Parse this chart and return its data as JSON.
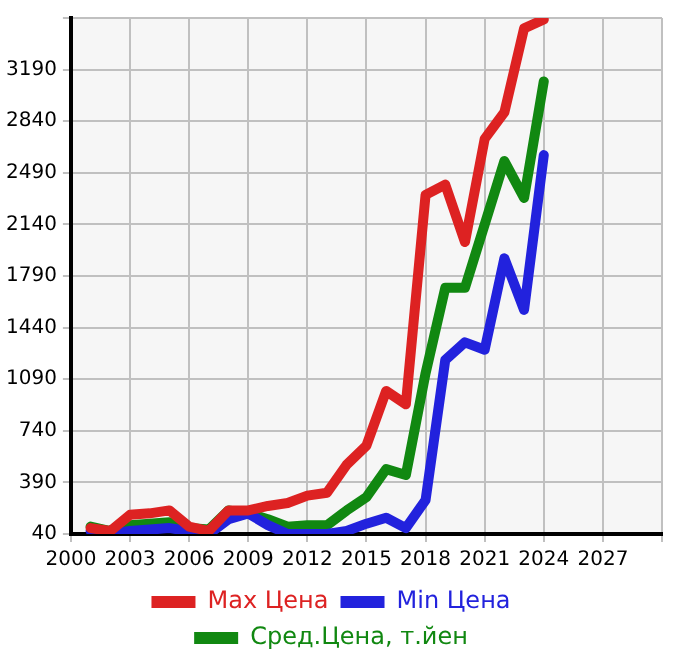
{
  "chart_data": {
    "type": "line",
    "x": [
      2001,
      2002,
      2003,
      2004,
      2005,
      2006,
      2007,
      2008,
      2009,
      2010,
      2011,
      2012,
      2013,
      2014,
      2015,
      2016,
      2017,
      2018,
      2019,
      2020,
      2021,
      2022,
      2023,
      2024
    ],
    "series": [
      {
        "name": "Max Цена",
        "color": "#dd2222",
        "values": [
          80,
          60,
          170,
          180,
          200,
          90,
          60,
          200,
          200,
          230,
          250,
          300,
          320,
          510,
          640,
          1010,
          920,
          2340,
          2410,
          2020,
          2720,
          2900,
          3470,
          3530
        ]
      },
      {
        "name": "Min Цена",
        "color": "#2222dd",
        "values": [
          60,
          40,
          60,
          70,
          80,
          60,
          40,
          140,
          180,
          100,
          40,
          40,
          40,
          60,
          110,
          150,
          80,
          270,
          1220,
          1340,
          1290,
          1910,
          1560,
          2610
        ]
      },
      {
        "name": "Сред.Цена, т.йен",
        "color": "#118811",
        "values": [
          90,
          60,
          100,
          110,
          120,
          80,
          70,
          200,
          180,
          140,
          90,
          100,
          100,
          200,
          290,
          480,
          440,
          1130,
          1710,
          1710,
          2140,
          2570,
          2320,
          3110
        ]
      }
    ],
    "xlim": [
      2000,
      2030
    ],
    "xticks": [
      2000,
      2003,
      2006,
      2009,
      2012,
      2015,
      2018,
      2021,
      2024,
      2027,
      {
        "value": 2030,
        "label": null
      }
    ],
    "ylim": [
      40,
      3540
    ],
    "yticks": [
      40,
      390,
      740,
      1090,
      1440,
      1790,
      2140,
      2490,
      2840,
      3190,
      {
        "value": 3540,
        "label": null
      }
    ],
    "grid": true,
    "legend": "bottom",
    "marker": "none",
    "line_style": "solid"
  }
}
